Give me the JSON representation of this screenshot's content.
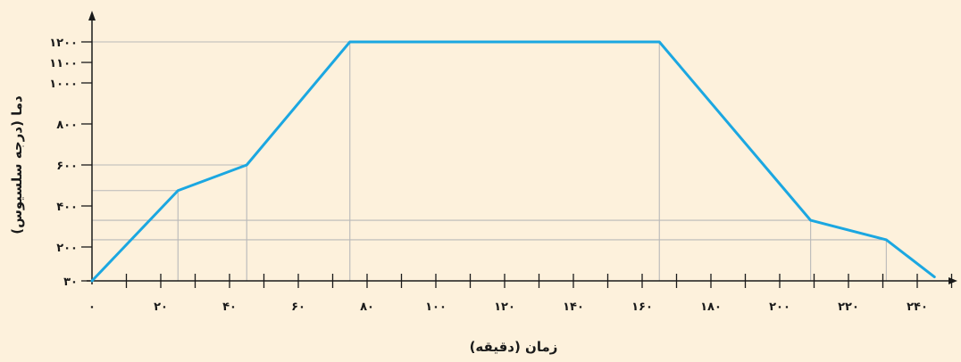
{
  "chart_data": {
    "type": "line",
    "xlabel": "زمان (دقیقه)",
    "ylabel": "دما (درجه سلسیوس)",
    "x_ticks": [
      0,
      20,
      40,
      60,
      80,
      100,
      120,
      140,
      160,
      180,
      200,
      220,
      240
    ],
    "x_tick_labels": [
      "۰",
      "۲۰",
      "۴۰",
      "۶۰",
      "۸۰",
      "۱۰۰",
      "۱۲۰",
      "۱۴۰",
      "۱۶۰",
      "۱۸۰",
      "۲۰۰",
      "۲۲۰",
      "۲۴۰"
    ],
    "y_ticks": [
      30,
      200,
      400,
      600,
      800,
      1000,
      1100,
      1200
    ],
    "y_tick_labels": [
      "۳۰",
      "۲۰۰",
      "۴۰۰",
      "۶۰۰",
      "۸۰۰",
      "۱۰۰۰",
      "۱۱۰۰",
      "۱۲۰۰"
    ],
    "series": [
      {
        "x": [
          0,
          25,
          45,
          75,
          165,
          209,
          231,
          245
        ],
        "y": [
          30,
          475,
          600,
          1200,
          1200,
          330,
          235,
          50
        ],
        "color": "#1ba7e1"
      }
    ],
    "grid": false,
    "guide_lines": true,
    "guide_color": "#b9b9b9",
    "axis_color": "#1a1a1a",
    "background": "#fdf1dc"
  }
}
